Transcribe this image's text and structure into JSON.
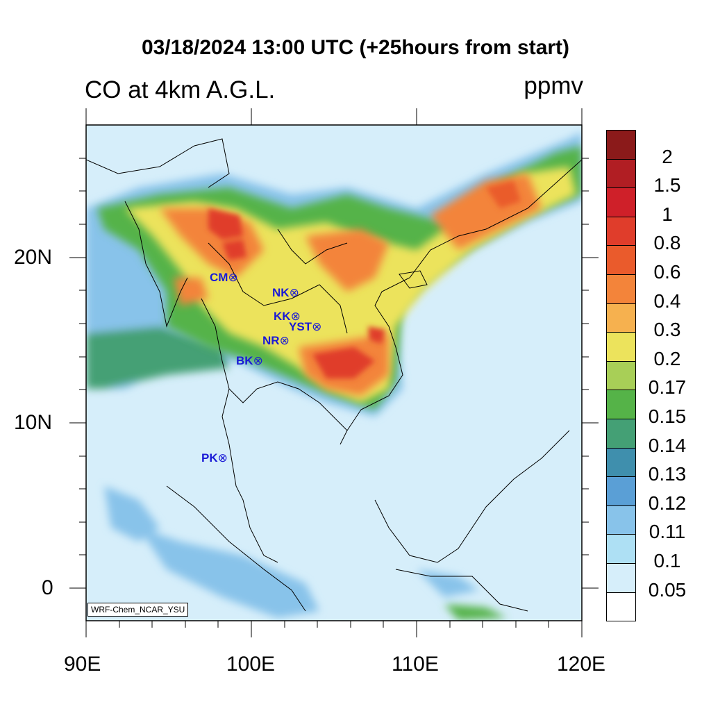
{
  "header": {
    "title": "03/18/2024 13:00 UTC (+25hours from start)",
    "left_subtitle": "CO at 4km A.G.L.",
    "right_subtitle": "ppmv"
  },
  "map": {
    "lon_labels": [
      "90E",
      "100E",
      "110E",
      "120E"
    ],
    "lat_labels": [
      "20N",
      "10N",
      "0"
    ],
    "credit": "WRF-Chem_NCAR_YSU",
    "stations": [
      {
        "name": "CM"
      },
      {
        "name": "NK"
      },
      {
        "name": "KK"
      },
      {
        "name": "YST"
      },
      {
        "name": "NR"
      },
      {
        "name": "BK"
      },
      {
        "name": "PK"
      }
    ],
    "station_symbol": "⊗"
  },
  "colorbar": {
    "labels": [
      "2",
      "1.5",
      "1",
      "0.8",
      "0.6",
      "0.4",
      "0.3",
      "0.2",
      "0.17",
      "0.15",
      "0.14",
      "0.13",
      "0.12",
      "0.11",
      "0.1",
      "0.05"
    ],
    "colors": [
      "#8b1a1a",
      "#b11e23",
      "#cf2029",
      "#e03d2b",
      "#ea5b2c",
      "#f3843a",
      "#f6b14f",
      "#ece35c",
      "#a8cf57",
      "#55b348",
      "#44a075",
      "#3f8fad",
      "#5a9fd6",
      "#88c3ea",
      "#aee0f4",
      "#d6eefa",
      "#ffffff"
    ]
  }
}
